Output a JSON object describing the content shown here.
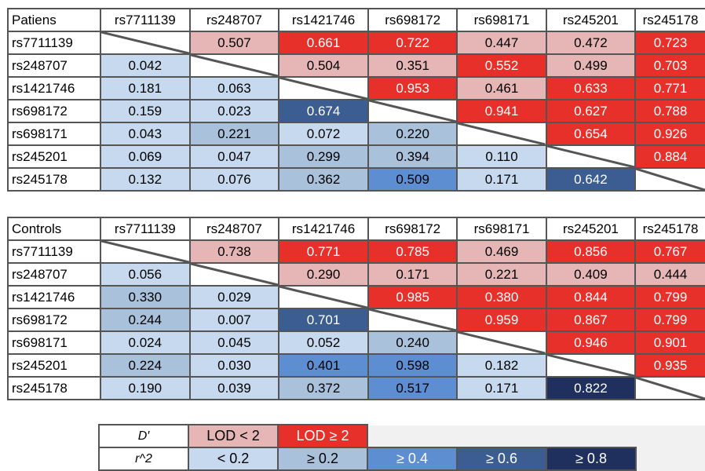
{
  "colors": {
    "lod_low": "#e6b6b6",
    "lod_high": "#e8302a",
    "r2_lt_02": "#c6d9ee",
    "r2_ge_02": "#a9c1db",
    "r2_ge_04": "#5d8ed1",
    "r2_ge_06": "#3c5d91",
    "r2_ge_08": "#1f2f5e"
  },
  "snps": [
    "rs7711139",
    "rs248707",
    "rs1421746",
    "rs698172",
    "rs698171",
    "rs245201",
    "rs245178"
  ],
  "tables": [
    {
      "label": "Patiens",
      "upper": [
        [
          null,
          "0.507",
          "0.661",
          "0.722",
          "0.447",
          "0.472",
          "0.723"
        ],
        [
          null,
          null,
          "0.504",
          "0.351",
          "0.552",
          "0.499",
          "0.703"
        ],
        [
          null,
          null,
          null,
          "0.953",
          "0.461",
          "0.633",
          "0.771"
        ],
        [
          null,
          null,
          null,
          null,
          "0.941",
          "0.627",
          "0.788"
        ],
        [
          null,
          null,
          null,
          null,
          null,
          "0.654",
          "0.926"
        ],
        [
          null,
          null,
          null,
          null,
          null,
          null,
          "0.884"
        ],
        [
          null,
          null,
          null,
          null,
          null,
          null,
          null
        ]
      ],
      "upper_lod": [
        [
          null,
          "low",
          "high",
          "high",
          "low",
          "low",
          "high"
        ],
        [
          null,
          null,
          "low",
          "low",
          "high",
          "low",
          "high"
        ],
        [
          null,
          null,
          null,
          "high",
          "low",
          "high",
          "high"
        ],
        [
          null,
          null,
          null,
          null,
          "high",
          "high",
          "high"
        ],
        [
          null,
          null,
          null,
          null,
          null,
          "high",
          "high"
        ],
        [
          null,
          null,
          null,
          null,
          null,
          null,
          "high"
        ],
        [
          null,
          null,
          null,
          null,
          null,
          null,
          null
        ]
      ],
      "lower": [
        [
          null,
          null,
          null,
          null,
          null,
          null,
          null
        ],
        [
          "0.042",
          null,
          null,
          null,
          null,
          null,
          null
        ],
        [
          "0.181",
          "0.063",
          null,
          null,
          null,
          null,
          null
        ],
        [
          "0.159",
          "0.023",
          "0.674",
          null,
          null,
          null,
          null
        ],
        [
          "0.043",
          "0.221",
          "0.072",
          "0.220",
          null,
          null,
          null
        ],
        [
          "0.069",
          "0.047",
          "0.299",
          "0.394",
          "0.110",
          null,
          null
        ],
        [
          "0.132",
          "0.076",
          "0.362",
          "0.509",
          "0.171",
          "0.642",
          null
        ]
      ]
    },
    {
      "label": "Controls",
      "upper": [
        [
          null,
          "0.738",
          "0.771",
          "0.785",
          "0.469",
          "0.856",
          "0.767"
        ],
        [
          null,
          null,
          "0.290",
          "0.171",
          "0.221",
          "0.409",
          "0.444"
        ],
        [
          null,
          null,
          null,
          "0.985",
          "0.380",
          "0.844",
          "0.799"
        ],
        [
          null,
          null,
          null,
          null,
          "0.959",
          "0.867",
          "0.799"
        ],
        [
          null,
          null,
          null,
          null,
          null,
          "0.946",
          "0.901"
        ],
        [
          null,
          null,
          null,
          null,
          null,
          null,
          "0.935"
        ],
        [
          null,
          null,
          null,
          null,
          null,
          null,
          null
        ]
      ],
      "upper_lod": [
        [
          null,
          "low",
          "high",
          "high",
          "low",
          "high",
          "high"
        ],
        [
          null,
          null,
          "low",
          "low",
          "low",
          "low",
          "low"
        ],
        [
          null,
          null,
          null,
          "high",
          "high",
          "high",
          "high"
        ],
        [
          null,
          null,
          null,
          null,
          "high",
          "high",
          "high"
        ],
        [
          null,
          null,
          null,
          null,
          null,
          "high",
          "high"
        ],
        [
          null,
          null,
          null,
          null,
          null,
          null,
          "high"
        ],
        [
          null,
          null,
          null,
          null,
          null,
          null,
          null
        ]
      ],
      "lower": [
        [
          null,
          null,
          null,
          null,
          null,
          null,
          null
        ],
        [
          "0.056",
          null,
          null,
          null,
          null,
          null,
          null
        ],
        [
          "0.330",
          "0.029",
          null,
          null,
          null,
          null,
          null
        ],
        [
          "0.244",
          "0.007",
          "0.701",
          null,
          null,
          null,
          null
        ],
        [
          "0.024",
          "0.045",
          "0.052",
          "0.240",
          null,
          null,
          null
        ],
        [
          "0.224",
          "0.030",
          "0.401",
          "0.598",
          "0.182",
          null,
          null
        ],
        [
          "0.190",
          "0.039",
          "0.372",
          "0.517",
          "0.171",
          "0.822",
          null
        ]
      ]
    }
  ],
  "legend": {
    "d_label": "D′",
    "lod_low": "LOD < 2",
    "lod_high": "LOD ≥ 2",
    "r2_label": "r^2",
    "r2_bins": [
      "< 0.2",
      "≥ 0.2",
      "≥ 0.4",
      "≥ 0.6",
      "≥ 0.8"
    ]
  }
}
